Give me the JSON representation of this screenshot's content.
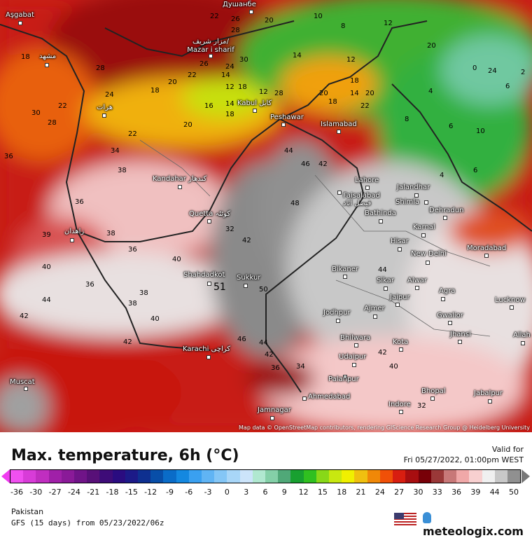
{
  "map": {
    "attribution": "Map data © OpenStreetMap contributors, rendering GIScience Research Group @ Heidelberg University",
    "cities": [
      "Aşgabat",
      "مشهد",
      "هرات",
      "مزار شریف/ Mazar i sharif",
      "Душанбе",
      "Kabul کابل",
      "Peshawar",
      "Islamabad",
      "Kandahar کندهار",
      "Quetta کوئٹہ",
      "زاهدان",
      "Lahore",
      "Faisalabad فیصل آباد",
      "Jalandhar",
      "Shimla",
      "Bathinda",
      "Dehradun",
      "Karnal",
      "Hisar",
      "New Delhi",
      "Moradabad",
      "Shahdadkot",
      "Sukkur",
      "Bikaner",
      "Sikar",
      "Alwar",
      "Agra",
      "Lucknow",
      "Jaipur",
      "Jodhpur",
      "Ajmer",
      "Gwalior",
      "Jhansi",
      "Allah",
      "Bhilwara",
      "Kota",
      "Udaipur",
      "Karachi کراچی",
      "Palanpur",
      "Ahmedabad",
      "Bhopal",
      "Jabalpur",
      "Indore",
      "Jamnagar",
      "Muscat"
    ],
    "temp_labels": [
      "22",
      "20",
      "26",
      "28",
      "18",
      "28",
      "26",
      "22",
      "20",
      "18",
      "24",
      "22",
      "30",
      "28",
      "30",
      "24",
      "14",
      "12",
      "18",
      "16",
      "14",
      "18",
      "20",
      "22",
      "12",
      "28",
      "20",
      "14",
      "18",
      "20",
      "22",
      "12",
      "14",
      "18",
      "10",
      "8",
      "12",
      "20",
      "24",
      "6",
      "0",
      "2",
      "4",
      "6",
      "10",
      "8",
      "6",
      "4",
      "34",
      "38",
      "36",
      "36",
      "38",
      "32",
      "36",
      "42",
      "46",
      "42",
      "44",
      "48",
      "40",
      "40",
      "36",
      "44",
      "42",
      "38",
      "40",
      "38",
      "42",
      "51",
      "50",
      "46",
      "44",
      "42",
      "36",
      "34",
      "44",
      "42",
      "40",
      "32",
      "39"
    ]
  },
  "header": {
    "title": "Max. temperature, 6h (°C)",
    "valid_label": "Valid for",
    "valid_time": "Fri 05/27/2022, 01:00pm WEST"
  },
  "legend": {
    "ticks": [
      "-36",
      "-30",
      "-27",
      "-24",
      "-21",
      "-18",
      "-15",
      "-12",
      "-9",
      "-6",
      "-3",
      "0",
      "3",
      "6",
      "9",
      "12",
      "15",
      "18",
      "21",
      "24",
      "27",
      "30",
      "33",
      "36",
      "39",
      "44",
      "50"
    ],
    "colors": [
      "#f050f0",
      "#d83cd8",
      "#c02ec0",
      "#a020a8",
      "#8a1a98",
      "#701488",
      "#581078",
      "#3e0c78",
      "#2a0c80",
      "#1c1a88",
      "#0e3090",
      "#084ea8",
      "#0a6cc8",
      "#1488e0",
      "#3aa0f0",
      "#60b4f4",
      "#84c6f6",
      "#a8d6f8",
      "#cce4fa",
      "#b0e8d0",
      "#84d0a8",
      "#50a878",
      "#18a030",
      "#30c020",
      "#88d818",
      "#c8e810",
      "#f0f000",
      "#f0c010",
      "#f08808",
      "#f05008",
      "#d81e10",
      "#a80e10",
      "#780008",
      "#9a3838",
      "#c87878",
      "#f0a8a8",
      "#f8d0d0",
      "#f0f0f0",
      "#c8c8c8",
      "#909090"
    ]
  },
  "footer": {
    "region": "Pakistan",
    "model": "GFS (15 days) from  05/23/2022/06z",
    "brand": "meteologix.com"
  }
}
